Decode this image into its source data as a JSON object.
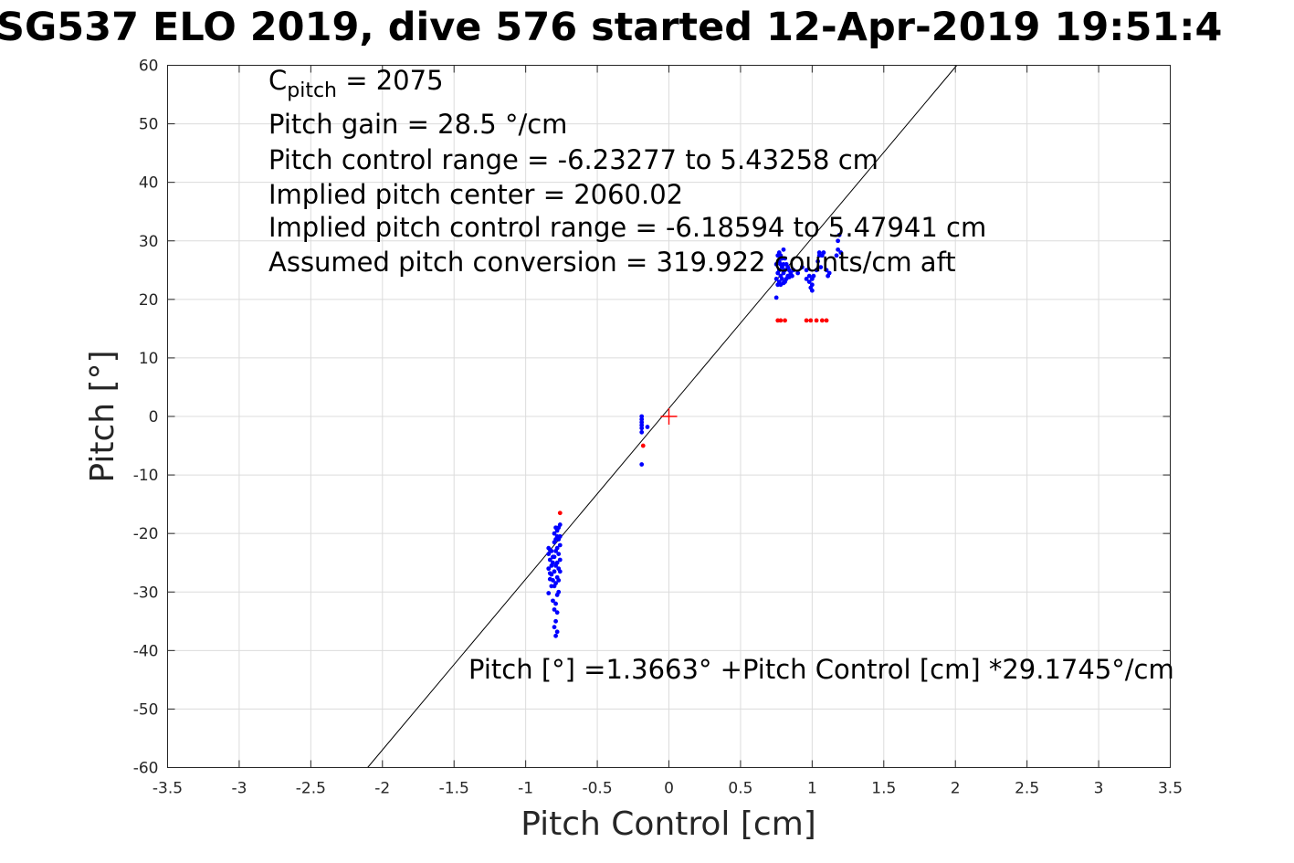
{
  "chart_data": {
    "type": "scatter",
    "title": "SG537 ELO 2019, dive 576 started 12-Apr-2019 19:51:4",
    "xlabel": "Pitch Control [cm]",
    "ylabel": "Pitch [°]",
    "xlim": [
      -3.5,
      3.5
    ],
    "ylim": [
      -60,
      60
    ],
    "xticks": [
      -3.5,
      -3,
      -2.5,
      -2,
      -1.5,
      -1,
      -0.5,
      0,
      0.5,
      1,
      1.5,
      2,
      2.5,
      3,
      3.5
    ],
    "xtick_labels": [
      "-3.5",
      "-3",
      "-2.5",
      "-2",
      "-1.5",
      "-1",
      "-0.5",
      "0",
      "0.5",
      "1",
      "1.5",
      "2",
      "2.5",
      "3",
      "3.5"
    ],
    "yticks": [
      -60,
      -50,
      -40,
      -30,
      -20,
      -10,
      0,
      10,
      20,
      30,
      40,
      50,
      60
    ],
    "ytick_labels": [
      "-60",
      "-50",
      "-40",
      "-30",
      "-20",
      "-10",
      "0",
      "10",
      "20",
      "30",
      "40",
      "50",
      "60"
    ],
    "grid": true,
    "colors": {
      "good": "#0000ff",
      "bad": "#ff0000",
      "fit": "#000000",
      "center": "#ff0000"
    },
    "fit_line": {
      "intercept": 1.3663,
      "slope": 29.1745
    },
    "center_marker": {
      "x": 0,
      "y": 0
    },
    "annotations": {
      "c_pitch": {
        "main": "C",
        "sub": "pitch",
        "rest": " = 2075"
      },
      "lines": [
        "Pitch gain = 28.5 °/cm",
        "Pitch control range = -6.23277 to 5.43258 cm",
        "Implied pitch center = 2060.02",
        "Implied pitch control range = -6.18594 to 5.47941 cm",
        "Assumed pitch conversion = 319.922 counts/cm aft"
      ],
      "fit_text": "Pitch [°] =1.3663° +Pitch Control [cm] *29.1745°/cm"
    },
    "series": [
      {
        "color_key": "bad",
        "points": [
          [
            -0.76,
            -16.5
          ],
          [
            -0.18,
            -5.0
          ],
          [
            0.76,
            16.4
          ],
          [
            0.78,
            16.4
          ],
          [
            0.81,
            16.4
          ],
          [
            0.96,
            16.4
          ],
          [
            0.99,
            16.4
          ],
          [
            1.03,
            16.4
          ],
          [
            1.07,
            16.4
          ],
          [
            1.1,
            16.4
          ]
        ]
      },
      {
        "color_key": "good",
        "points": [
          [
            -0.84,
            -22.5
          ],
          [
            -0.84,
            -23.5
          ],
          [
            -0.84,
            -26.0
          ],
          [
            -0.84,
            -30.2
          ],
          [
            -0.83,
            -22.8
          ],
          [
            -0.83,
            -24.5
          ],
          [
            -0.83,
            -26.8
          ],
          [
            -0.83,
            -27.8
          ],
          [
            -0.82,
            -23.0
          ],
          [
            -0.82,
            -25.5
          ],
          [
            -0.82,
            -27.0
          ],
          [
            -0.82,
            -29.0
          ],
          [
            -0.81,
            -24.0
          ],
          [
            -0.81,
            -25.0
          ],
          [
            -0.81,
            -28.0
          ],
          [
            -0.81,
            -31.5
          ],
          [
            -0.8,
            -20.0
          ],
          [
            -0.8,
            -21.5
          ],
          [
            -0.8,
            -24.0
          ],
          [
            -0.8,
            -26.5
          ],
          [
            -0.8,
            -29.0
          ],
          [
            -0.8,
            -33.0
          ],
          [
            -0.8,
            -36.0
          ],
          [
            -0.79,
            -19.0
          ],
          [
            -0.79,
            -21.0
          ],
          [
            -0.79,
            -23.0
          ],
          [
            -0.79,
            -25.5
          ],
          [
            -0.79,
            -28.5
          ],
          [
            -0.79,
            -32.0
          ],
          [
            -0.79,
            -35.0
          ],
          [
            -0.79,
            -37.5
          ],
          [
            -0.78,
            -19.5
          ],
          [
            -0.78,
            -20.5
          ],
          [
            -0.78,
            -22.5
          ],
          [
            -0.78,
            -25.0
          ],
          [
            -0.78,
            -27.5
          ],
          [
            -0.78,
            -30.5
          ],
          [
            -0.78,
            -33.5
          ],
          [
            -0.78,
            -36.8
          ],
          [
            -0.77,
            -19.0
          ],
          [
            -0.77,
            -21.0
          ],
          [
            -0.77,
            -23.5
          ],
          [
            -0.77,
            -26.0
          ],
          [
            -0.77,
            -28.0
          ],
          [
            -0.77,
            -30.0
          ],
          [
            -0.76,
            -18.5
          ],
          [
            -0.76,
            -20.5
          ],
          [
            -0.76,
            -22.0
          ],
          [
            -0.76,
            -24.5
          ],
          [
            -0.76,
            -26.5
          ],
          [
            -0.19,
            0.0
          ],
          [
            -0.19,
            -0.5
          ],
          [
            -0.19,
            -1.0
          ],
          [
            -0.19,
            -1.5
          ],
          [
            -0.19,
            -2.0
          ],
          [
            -0.19,
            -2.7
          ],
          [
            -0.19,
            -8.2
          ],
          [
            -0.15,
            -1.8
          ],
          [
            0.75,
            20.3
          ],
          [
            0.75,
            23.5
          ],
          [
            0.75,
            26.0
          ],
          [
            0.76,
            22.5
          ],
          [
            0.76,
            24.5
          ],
          [
            0.76,
            27.5
          ],
          [
            0.77,
            23.0
          ],
          [
            0.77,
            25.0
          ],
          [
            0.77,
            26.5
          ],
          [
            0.77,
            28.0
          ],
          [
            0.78,
            22.5
          ],
          [
            0.78,
            24.0
          ],
          [
            0.78,
            26.0
          ],
          [
            0.78,
            27.5
          ],
          [
            0.79,
            23.5
          ],
          [
            0.79,
            25.5
          ],
          [
            0.79,
            27.0
          ],
          [
            0.8,
            22.8
          ],
          [
            0.8,
            24.5
          ],
          [
            0.8,
            26.0
          ],
          [
            0.8,
            28.5
          ],
          [
            0.81,
            23.0
          ],
          [
            0.81,
            25.0
          ],
          [
            0.81,
            27.0
          ],
          [
            0.82,
            23.5
          ],
          [
            0.82,
            26.0
          ],
          [
            0.83,
            24.0
          ],
          [
            0.83,
            25.5
          ],
          [
            0.84,
            23.8
          ],
          [
            0.84,
            25.0
          ],
          [
            0.85,
            24.5
          ],
          [
            0.86,
            24.0
          ],
          [
            0.87,
            25.0
          ],
          [
            0.9,
            24.5
          ],
          [
            0.93,
            25.5
          ],
          [
            0.96,
            25.0
          ],
          [
            0.96,
            23.5
          ],
          [
            0.98,
            23.0
          ],
          [
            0.98,
            24.0
          ],
          [
            0.99,
            22.0
          ],
          [
            1.0,
            21.5
          ],
          [
            1.0,
            22.5
          ],
          [
            1.0,
            23.5
          ],
          [
            1.01,
            24.0
          ],
          [
            1.03,
            25.0
          ],
          [
            1.04,
            26.5
          ],
          [
            1.05,
            27.5
          ],
          [
            1.05,
            28.0
          ],
          [
            1.06,
            25.5
          ],
          [
            1.07,
            27.5
          ],
          [
            1.08,
            28.0
          ],
          [
            1.1,
            25.0
          ],
          [
            1.11,
            24.0
          ],
          [
            1.12,
            24.5
          ],
          [
            1.17,
            27.5
          ],
          [
            1.18,
            28.5
          ],
          [
            1.18,
            30.0
          ],
          [
            1.19,
            31.0
          ],
          [
            1.2,
            28.0
          ]
        ]
      }
    ]
  }
}
